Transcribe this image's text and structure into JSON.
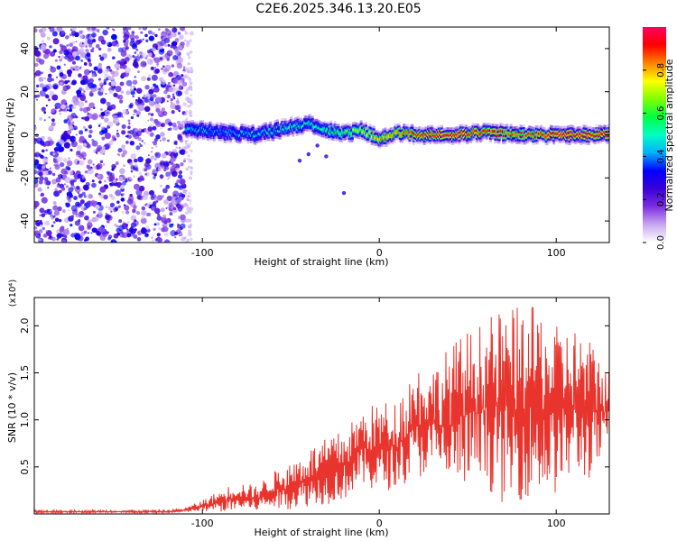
{
  "title": "C2E6.2025.346.13.20.E05",
  "colors": {
    "snr_line": "#e8342c",
    "noise_fill": "#7c2fd9",
    "frame": "#000000"
  },
  "chart_data": [
    {
      "type": "heatmap",
      "name": "spectrogram",
      "xlabel": "Height of straight line (km)",
      "ylabel": "Frequency (Hz)",
      "xlim": [
        -195,
        130
      ],
      "ylim": [
        -50,
        50
      ],
      "xticks": [
        -100,
        0,
        100
      ],
      "yticks": [
        -40,
        -20,
        0,
        20,
        40
      ],
      "colorbar": {
        "label": "Normalized spectral amplitude",
        "range": [
          0,
          1
        ],
        "ticks": [
          0.0,
          0.2,
          0.4,
          0.6,
          0.8
        ],
        "tick_labels": [
          "0.0",
          "0.2",
          "0.4",
          "0.6",
          "0.8"
        ],
        "colormap": [
          "#ffffff",
          "#c8a8f0",
          "#7b2fe0",
          "#3a00d8",
          "#0000ff",
          "#00b0ff",
          "#00ffc0",
          "#00ff40",
          "#80ff00",
          "#ffff00",
          "#ff8000",
          "#ff0000",
          "#ff0060"
        ]
      },
      "regions": [
        {
          "x_range": [
            -195,
            -110
          ],
          "freq_range": [
            -50,
            50
          ],
          "amplitude": "low, broadband noise"
        },
        {
          "x_range": [
            -110,
            130
          ],
          "center_freq": 1,
          "band_width": 8,
          "amplitude": "rising from 0.4 to 0.95"
        }
      ],
      "track": {
        "x": [
          -110,
          -90,
          -70,
          -55,
          -40,
          -30,
          -20,
          -10,
          0,
          10,
          20,
          40,
          60,
          80,
          100,
          115,
          130
        ],
        "freq": [
          3,
          1,
          0,
          3,
          5,
          2,
          1,
          2,
          -2,
          1,
          0,
          0,
          1,
          0,
          0,
          0,
          0
        ],
        "amplitude": [
          0.45,
          0.4,
          0.45,
          0.5,
          0.5,
          0.55,
          0.6,
          0.7,
          0.8,
          0.85,
          0.9,
          0.95,
          0.9,
          0.85,
          0.95,
          0.95,
          0.95
        ]
      }
    },
    {
      "type": "line",
      "name": "snr",
      "xlabel": "Height of straight line (km)",
      "ylabel": "SNR (10 * v/v)",
      "scale_label": "(x10⁴)",
      "xlim": [
        -195,
        130
      ],
      "ylim": [
        0,
        2.3
      ],
      "xticks": [
        -100,
        0,
        100
      ],
      "yticks": [
        0.5,
        1.0,
        1.5,
        2.0
      ],
      "ytick_labels": [
        "0.5",
        "1.0",
        "1.5",
        "2.0"
      ],
      "series": [
        {
          "name": "SNR",
          "x": [
            -195,
            -180,
            -160,
            -140,
            -120,
            -110,
            -100,
            -90,
            -80,
            -70,
            -60,
            -50,
            -40,
            -30,
            -20,
            -10,
            0,
            10,
            20,
            30,
            40,
            50,
            60,
            70,
            80,
            90,
            100,
            110,
            120,
            130
          ],
          "envelope_max": [
            0.04,
            0.04,
            0.04,
            0.04,
            0.04,
            0.06,
            0.15,
            0.25,
            0.35,
            0.3,
            0.45,
            0.55,
            0.7,
            0.8,
            0.9,
            1.1,
            1.2,
            1.2,
            1.6,
            1.55,
            1.8,
            1.95,
            2.05,
            2.2,
            2.2,
            2.2,
            2.0,
            2.0,
            1.85,
            1.55
          ],
          "envelope_min": [
            0.01,
            0.01,
            0.01,
            0.01,
            0.01,
            0.02,
            0.02,
            0.02,
            0.03,
            0.03,
            0.05,
            0.05,
            0.08,
            0.1,
            0.15,
            0.3,
            0.2,
            0.3,
            0.35,
            0.45,
            0.25,
            0.3,
            0.3,
            0.1,
            0.15,
            0.2,
            0.2,
            0.4,
            0.35,
            0.7
          ]
        }
      ]
    }
  ]
}
